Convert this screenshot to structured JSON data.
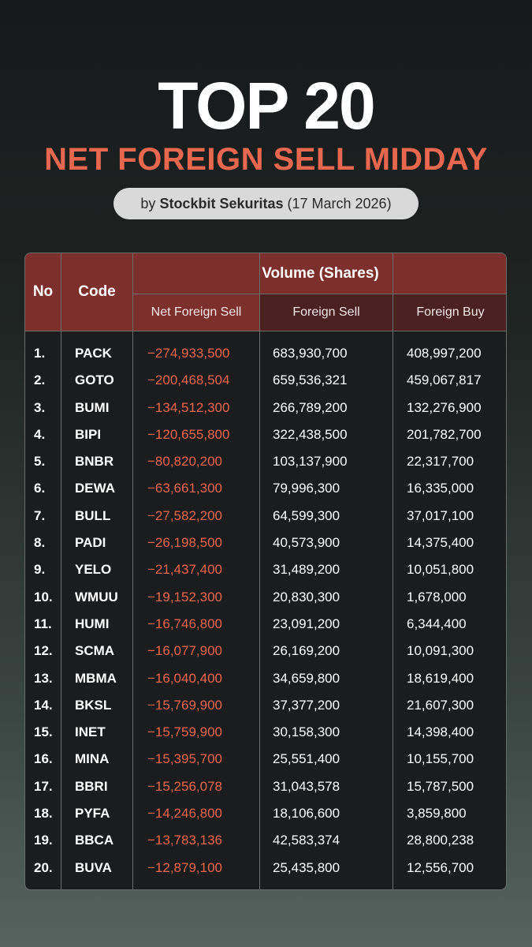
{
  "header": {
    "title": "TOP 20",
    "subtitle": "NET FOREIGN SELL MIDDAY",
    "by_prefix": "by",
    "by_brand": "Stockbit Sekuritas",
    "by_date": "(17 March 2026)"
  },
  "table": {
    "col_no": "No",
    "col_code": "Code",
    "col_volume": "Volume (Shares)",
    "col_net": "Net Foreign Sell",
    "col_sell": "Foreign Sell",
    "col_buy": "Foreign Buy",
    "rows": [
      {
        "no": "1.",
        "code": "PACK",
        "net": "−274,933,500",
        "sell": "683,930,700",
        "buy": "408,997,200"
      },
      {
        "no": "2.",
        "code": "GOTO",
        "net": "−200,468,504",
        "sell": "659,536,321",
        "buy": "459,067,817"
      },
      {
        "no": "3.",
        "code": "BUMI",
        "net": "−134,512,300",
        "sell": "266,789,200",
        "buy": "132,276,900"
      },
      {
        "no": "4.",
        "code": "BIPI",
        "net": "−120,655,800",
        "sell": "322,438,500",
        "buy": "201,782,700"
      },
      {
        "no": "5.",
        "code": "BNBR",
        "net": "−80,820,200",
        "sell": "103,137,900",
        "buy": "22,317,700"
      },
      {
        "no": "6.",
        "code": "DEWA",
        "net": "−63,661,300",
        "sell": "79,996,300",
        "buy": "16,335,000"
      },
      {
        "no": "7.",
        "code": "BULL",
        "net": "−27,582,200",
        "sell": "64,599,300",
        "buy": "37,017,100"
      },
      {
        "no": "8.",
        "code": "PADI",
        "net": "−26,198,500",
        "sell": "40,573,900",
        "buy": "14,375,400"
      },
      {
        "no": "9.",
        "code": "YELO",
        "net": "−21,437,400",
        "sell": "31,489,200",
        "buy": "10,051,800"
      },
      {
        "no": "10.",
        "code": "WMUU",
        "net": "−19,152,300",
        "sell": "20,830,300",
        "buy": "1,678,000"
      },
      {
        "no": "11.",
        "code": "HUMI",
        "net": "−16,746,800",
        "sell": "23,091,200",
        "buy": "6,344,400"
      },
      {
        "no": "12.",
        "code": "SCMA",
        "net": "−16,077,900",
        "sell": "26,169,200",
        "buy": "10,091,300"
      },
      {
        "no": "13.",
        "code": "MBMA",
        "net": "−16,040,400",
        "sell": "34,659,800",
        "buy": "18,619,400"
      },
      {
        "no": "14.",
        "code": "BKSL",
        "net": "−15,769,900",
        "sell": "37,377,200",
        "buy": "21,607,300"
      },
      {
        "no": "15.",
        "code": "INET",
        "net": "−15,759,900",
        "sell": "30,158,300",
        "buy": "14,398,400"
      },
      {
        "no": "16.",
        "code": "MINA",
        "net": "−15,395,700",
        "sell": "25,551,400",
        "buy": "10,155,700"
      },
      {
        "no": "17.",
        "code": "BBRI",
        "net": "−15,256,078",
        "sell": "31,043,578",
        "buy": "15,787,500"
      },
      {
        "no": "18.",
        "code": "PYFA",
        "net": "−14,246,800",
        "sell": "18,106,600",
        "buy": "3,859,800"
      },
      {
        "no": "19.",
        "code": "BBCA",
        "net": "−13,783,136",
        "sell": "42,583,374",
        "buy": "28,800,238"
      },
      {
        "no": "20.",
        "code": "BUVA",
        "net": "−12,879,100",
        "sell": "25,435,800",
        "buy": "12,556,700"
      }
    ]
  },
  "colors": {
    "accent": "#e8674f",
    "header_red": "#7d2f2c",
    "header_dark_red": "#4a2021"
  }
}
